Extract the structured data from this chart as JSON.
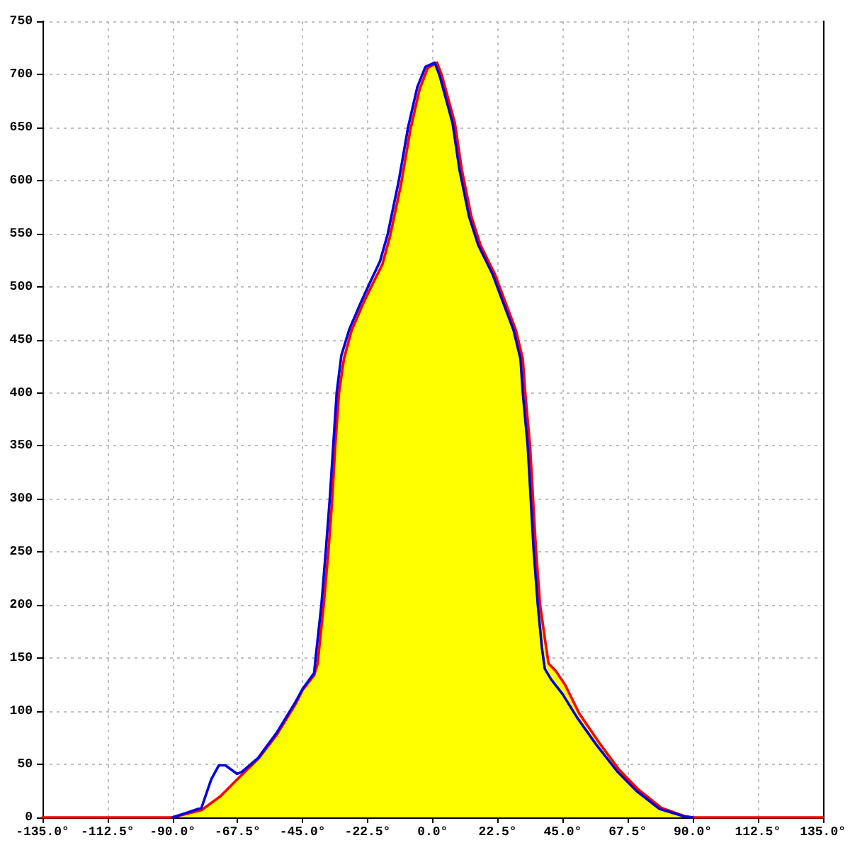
{
  "chart_data": {
    "type": "line",
    "xlim": [
      -135,
      135
    ],
    "xticks": [
      {
        "value": -135,
        "label": "-135.0°"
      },
      {
        "value": -112.5,
        "label": "-112.5°"
      },
      {
        "value": -90,
        "label": "-90.0°"
      },
      {
        "value": -67.5,
        "label": "-67.5°"
      },
      {
        "value": -45,
        "label": "-45.0°"
      },
      {
        "value": -22.5,
        "label": "-22.5°"
      },
      {
        "value": 0,
        "label": "0.0°"
      },
      {
        "value": 22.5,
        "label": "22.5°"
      },
      {
        "value": 45,
        "label": "45.0°"
      },
      {
        "value": 67.5,
        "label": "67.5°"
      },
      {
        "value": 90,
        "label": "90.0°"
      },
      {
        "value": 112.5,
        "label": "112.5°"
      },
      {
        "value": 135,
        "label": "135.0°"
      }
    ],
    "ylim": [
      0,
      750
    ],
    "yticks": [
      0,
      50,
      100,
      150,
      200,
      250,
      300,
      350,
      400,
      450,
      500,
      550,
      600,
      650,
      700,
      750
    ],
    "grid": true,
    "marker": "none",
    "line_style": "solid",
    "series": [
      {
        "type": "area",
        "color": "#ffff00",
        "x": [
          -87,
          -79.9,
          -73.4,
          -67.2,
          -60.4,
          -53.9,
          -47.4,
          -45,
          -41,
          -39.8,
          -37.7,
          -36.1,
          -34.8,
          -33.7,
          -32.4,
          -30.7,
          -28,
          -23.9,
          -20.7,
          -17.4,
          -14.7,
          -10.9,
          -7.7,
          -4.5,
          -1.7,
          1.5,
          3.2,
          7.7,
          10.1,
          13.4,
          16.6,
          21.5,
          25.2,
          28.8,
          31.2,
          32,
          33.7,
          35.8,
          37.2,
          38.8,
          40.1,
          42.6,
          45.8,
          50.7,
          57.2,
          64.5,
          70.9,
          79.1,
          87
        ],
        "values": [
          0,
          7,
          20,
          37,
          55,
          78,
          107,
          120,
          134,
          145,
          200,
          250,
          298,
          350,
          400,
          432,
          459,
          485,
          503,
          521,
          548,
          597,
          648,
          686,
          706,
          711,
          699,
          654,
          610,
          566,
          539,
          512,
          485,
          459,
          432,
          401,
          350,
          250,
          200,
          169,
          145,
          138,
          125,
          98,
          72,
          45,
          27,
          9,
          0
        ]
      },
      {
        "type": "line",
        "color": "#ff0000",
        "x": [
          -135,
          -90,
          -79.9,
          -73.4,
          -67.2,
          -60.4,
          -53.9,
          -47.4,
          -45,
          -41,
          -39.8,
          -37.7,
          -36.1,
          -34.8,
          -33.7,
          -32.4,
          -30.7,
          -28,
          -23.9,
          -20.7,
          -17.4,
          -14.7,
          -10.9,
          -7.7,
          -4.5,
          -1.7,
          1.5,
          3.2,
          7.7,
          10.1,
          13.4,
          16.6,
          21.5,
          25.2,
          28.8,
          31.2,
          32,
          33.7,
          35.8,
          37.2,
          38.8,
          40.1,
          42.6,
          45.8,
          50.7,
          57.2,
          64.5,
          70.9,
          79.1,
          87.3,
          90,
          135
        ],
        "values": [
          0,
          0,
          7,
          20,
          37,
          55,
          78,
          107,
          120,
          134,
          145,
          200,
          250,
          298,
          350,
          400,
          432,
          459,
          485,
          503,
          521,
          548,
          597,
          648,
          686,
          706,
          711,
          699,
          654,
          610,
          566,
          539,
          512,
          485,
          459,
          432,
          401,
          350,
          250,
          200,
          169,
          145,
          138,
          125,
          98,
          72,
          45,
          27,
          9,
          1,
          0,
          0
        ]
      },
      {
        "type": "line",
        "color": "#0000e0",
        "x": [
          -90,
          -80,
          -76.6,
          -74,
          -71.7,
          -67.7,
          -66,
          -60.4,
          -53.9,
          -47.4,
          -45,
          -41,
          -40.5,
          -38.5,
          -37,
          -35.6,
          -34.4,
          -33.2,
          -31.6,
          -28.8,
          -24.7,
          -21.5,
          -18.2,
          -15.5,
          -11.7,
          -8.5,
          -5.3,
          -2.5,
          0.7,
          2.4,
          6.9,
          9.3,
          12.6,
          15.8,
          20.7,
          24.4,
          28,
          30.4,
          31.2,
          32.9,
          35,
          36.4,
          37.8,
          38.8,
          41,
          45,
          50,
          56.5,
          64,
          70.5,
          78.5,
          87,
          90
        ],
        "values": [
          0,
          9,
          36,
          49,
          49,
          41,
          43,
          56,
          80,
          109,
          121,
          136,
          150,
          200,
          250,
          300,
          350,
          400,
          435,
          460,
          486,
          505,
          524,
          550,
          600,
          650,
          688,
          707,
          711,
          699,
          654,
          610,
          566,
          539,
          512,
          485,
          459,
          432,
          400,
          350,
          250,
          200,
          160,
          140,
          130,
          116,
          94,
          69,
          43,
          25,
          8,
          1,
          0
        ]
      }
    ]
  }
}
